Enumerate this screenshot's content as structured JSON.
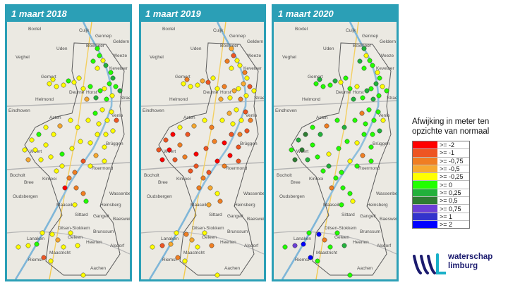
{
  "panels": [
    {
      "title": "1 maart 2018",
      "scheme": "y2018"
    },
    {
      "title": "1 maart 2019",
      "scheme": "y2019"
    },
    {
      "title": "1 maart 2020",
      "scheme": "y2020"
    }
  ],
  "map_labels": [
    "Cuijk",
    "Gennep",
    "Boxmeer",
    "Uden",
    "Veghel",
    "Weeze",
    "Kevelaer",
    "Gemert",
    "Horst",
    "Helmond",
    "Deurne",
    "Venlo",
    "Asten",
    "Straelen",
    "Brüggen",
    "Bocholt",
    "Weert",
    "Roermond",
    "Kinrooi",
    "Bree",
    "Maaseik",
    "Heinsberg",
    "Wassenberg",
    "Oudsbergen",
    "Dilsen-Stokkem",
    "Sittard",
    "Gangelt",
    "Geleen",
    "Brunssum",
    "Heerlen",
    "Lanaken",
    "Maastricht",
    "Aachen",
    "Baesweiler",
    "Riemst",
    "Eindhoven",
    "Geldern",
    "Boxtel",
    "Alsdorf"
  ],
  "legend": {
    "title_line1": "Afwijking in meter ten",
    "title_line2": "opzichte van normaal",
    "items": [
      {
        "label": ">= -2",
        "color": "#ff0000"
      },
      {
        "label": ">= -1",
        "color": "#ee5522"
      },
      {
        "label": ">= -0,75",
        "color": "#f07e22"
      },
      {
        "label": ">= -0,5",
        "color": "#f7a930"
      },
      {
        "label": ">= -0,25",
        "color": "#ffff00"
      },
      {
        "label": ">= 0",
        "color": "#22ff00"
      },
      {
        "label": ">= 0,25",
        "color": "#22b13b"
      },
      {
        "label": ">= 0,5",
        "color": "#2e7d32"
      },
      {
        "label": ">= 0,75",
        "color": "#6b3fd6"
      },
      {
        "label": ">= 1",
        "color": "#3333cc"
      },
      {
        "label": ">= 2",
        "color": "#0000ff"
      }
    ]
  },
  "logo": {
    "line1": "waterschap",
    "line2": "limburg",
    "colors": [
      "#1a1a6e",
      "#19b0c8"
    ]
  }
}
